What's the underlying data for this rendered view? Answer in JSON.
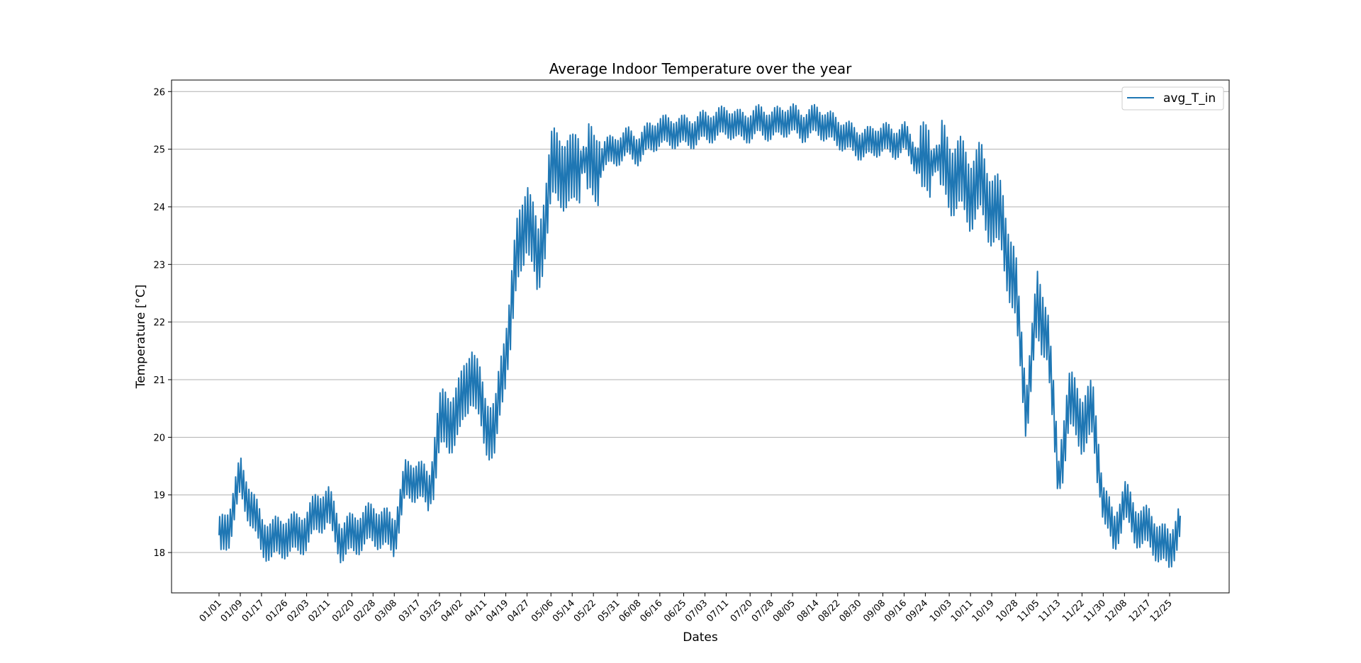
{
  "chart_data": {
    "type": "line",
    "title": "Average Indoor Temperature over the year",
    "xlabel": "Dates",
    "ylabel": "Temperature [°C]",
    "ylim": [
      17.3,
      26.2
    ],
    "yticks": [
      18,
      19,
      20,
      21,
      22,
      23,
      24,
      25,
      26
    ],
    "grid": "horizontal",
    "legend_position": "top-right",
    "xtick_labels": [
      "01/01",
      "01/09",
      "01/17",
      "01/26",
      "02/03",
      "02/11",
      "02/20",
      "02/28",
      "03/08",
      "03/17",
      "03/25",
      "04/02",
      "04/11",
      "04/19",
      "04/27",
      "05/06",
      "05/14",
      "05/22",
      "05/31",
      "06/08",
      "06/16",
      "06/25",
      "07/03",
      "07/11",
      "07/20",
      "07/28",
      "08/05",
      "08/14",
      "08/22",
      "08/30",
      "09/08",
      "09/16",
      "09/24",
      "10/03",
      "10/11",
      "10/19",
      "10/28",
      "11/05",
      "11/13",
      "11/22",
      "11/30",
      "12/08",
      "12/17",
      "12/25"
    ],
    "series": [
      {
        "name": "avg_T_in",
        "color": "#1f77b4",
        "x": [
          "01/01",
          "01/05",
          "01/09",
          "01/13",
          "01/17",
          "01/21",
          "01/26",
          "01/30",
          "02/03",
          "02/07",
          "02/11",
          "02/16",
          "02/20",
          "02/24",
          "02/28",
          "03/04",
          "03/08",
          "03/12",
          "03/17",
          "03/21",
          "03/25",
          "03/29",
          "04/02",
          "04/06",
          "04/11",
          "04/15",
          "04/19",
          "04/23",
          "04/27",
          "05/01",
          "05/06",
          "05/10",
          "05/14",
          "05/18",
          "05/22",
          "05/26",
          "05/31",
          "06/04",
          "06/08",
          "06/12",
          "06/16",
          "06/20",
          "06/25",
          "06/29",
          "07/03",
          "07/07",
          "07/11",
          "07/15",
          "07/20",
          "07/24",
          "07/28",
          "08/01",
          "08/05",
          "08/09",
          "08/14",
          "08/18",
          "08/22",
          "08/26",
          "08/30",
          "09/03",
          "09/08",
          "09/12",
          "09/16",
          "09/20",
          "09/24",
          "09/28",
          "10/03",
          "10/07",
          "10/11",
          "10/15",
          "10/19",
          "10/23",
          "10/28",
          "11/01",
          "11/05",
          "11/09",
          "11/13",
          "11/17",
          "11/22",
          "11/26",
          "11/30",
          "12/04",
          "12/08",
          "12/12",
          "12/17",
          "12/21",
          "12/25",
          "12/29"
        ],
        "y": [
          18.2,
          18.5,
          19.3,
          18.8,
          18.3,
          18.2,
          18.3,
          18.3,
          18.4,
          18.7,
          18.8,
          18.2,
          18.3,
          18.4,
          18.5,
          18.4,
          18.3,
          19.2,
          19.3,
          19.0,
          20.2,
          20.3,
          20.5,
          21.2,
          20.3,
          20.1,
          21.5,
          23.0,
          24.0,
          22.9,
          24.6,
          24.7,
          24.5,
          24.9,
          24.6,
          24.9,
          25.0,
          25.1,
          25.0,
          25.2,
          25.3,
          25.3,
          25.3,
          25.3,
          25.4,
          25.4,
          25.5,
          25.4,
          25.4,
          25.5,
          25.4,
          25.5,
          25.5,
          25.4,
          25.5,
          25.4,
          25.3,
          25.2,
          25.1,
          25.1,
          25.2,
          25.1,
          25.2,
          24.9,
          24.7,
          24.9,
          24.6,
          24.5,
          24.3,
          24.4,
          24.0,
          23.7,
          22.5,
          20.5,
          22.2,
          21.9,
          19.2,
          20.6,
          20.3,
          20.4,
          18.9,
          18.3,
          18.9,
          18.5,
          18.4,
          18.2,
          18.0,
          18.6
        ]
      }
    ]
  }
}
